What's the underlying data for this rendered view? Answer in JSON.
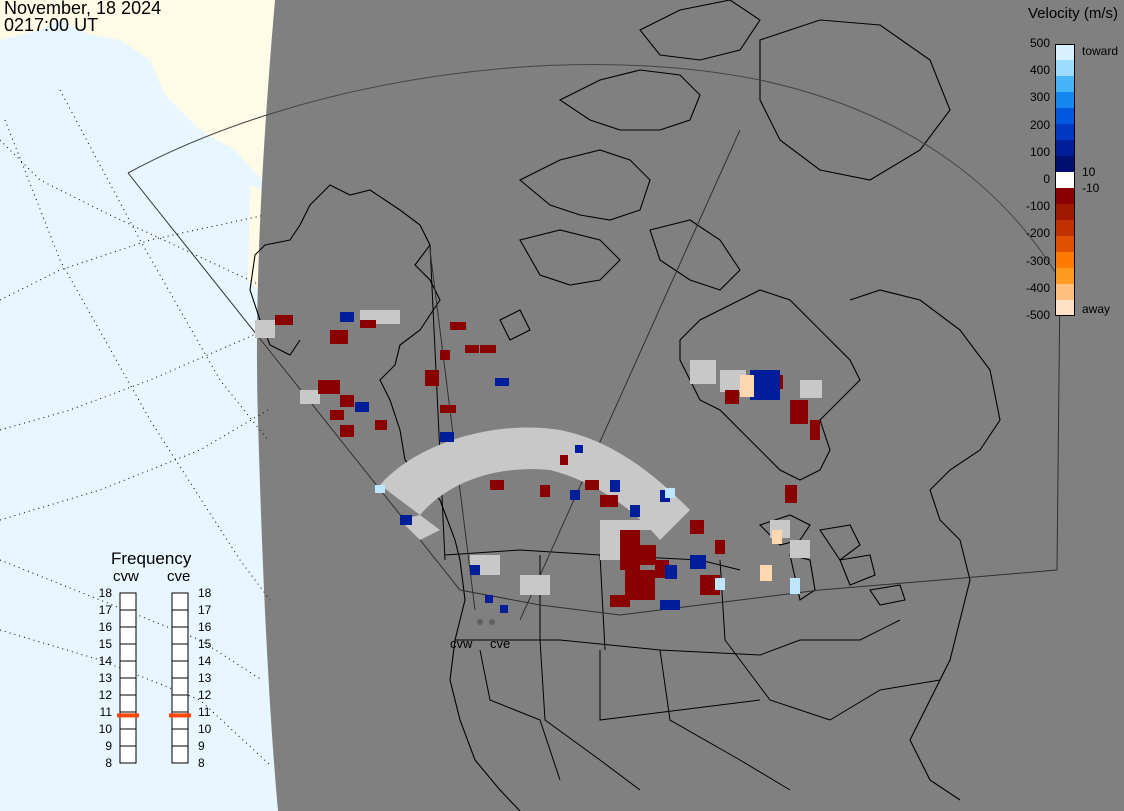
{
  "header": {
    "date": "November, 18 2024",
    "time": "0217:00 UT"
  },
  "colorbar": {
    "title": "Velocity (m/s)",
    "ticks": [
      "500",
      "400",
      "300",
      "200",
      "100",
      "0",
      "-100",
      "-200",
      "-300",
      "-400",
      "-500"
    ],
    "labels": {
      "toward": "toward",
      "away": "away",
      "plus10": "10",
      "minus10": "-10"
    },
    "colors": [
      "#ffe1c8",
      "#ffc080",
      "#ff9a20",
      "#ff7a00",
      "#e05000",
      "#c03000",
      "#a01800",
      "#8a0000",
      "#ffffff",
      "#000f70",
      "#001e9a",
      "#0038c4",
      "#0058e0",
      "#1488f0",
      "#48b4f8",
      "#9ddcff",
      "#d8f0ff"
    ]
  },
  "frequency": {
    "title": "Frequency",
    "columns": [
      "cvw",
      "cve"
    ],
    "scale": [
      "18",
      "17",
      "16",
      "15",
      "14",
      "13",
      "12",
      "11",
      "10",
      "9",
      "8"
    ],
    "cvw_mhz": 10.8,
    "cve_mhz": 10.8,
    "marker_color": "#ff4400"
  },
  "map": {
    "radar_labels": [
      "cvw",
      "cve"
    ],
    "ocean_color": "#e8f6ff",
    "night_color": "#808080",
    "day_land_color": "#fffbe6",
    "ground_scatter_color": "#c8c8c8"
  }
}
